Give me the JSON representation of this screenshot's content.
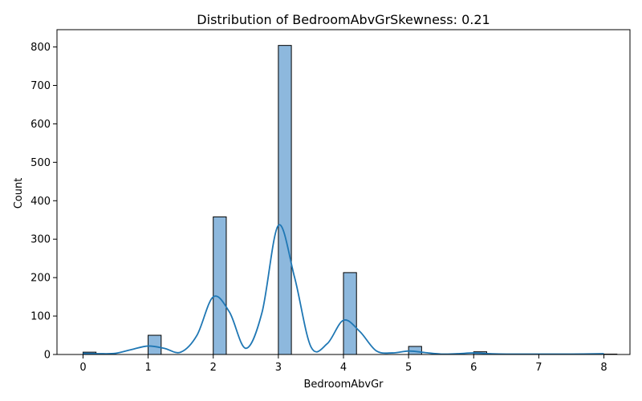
{
  "chart_data": {
    "type": "bar",
    "title": "Distribution of BedroomAbvGrSkewness: 0.21",
    "xlabel": "BedroomAbvGr",
    "ylabel": "Count",
    "xlim": [
      -0.4,
      8.4
    ],
    "ylim": [
      0,
      845
    ],
    "x_ticks": [
      0,
      1,
      2,
      3,
      4,
      5,
      6,
      7,
      8
    ],
    "y_ticks": [
      0,
      100,
      200,
      300,
      400,
      500,
      600,
      700,
      800
    ],
    "bin_width": 0.2,
    "bins": [
      {
        "x": 0,
        "count": 6
      },
      {
        "x": 1,
        "count": 50
      },
      {
        "x": 2,
        "count": 358
      },
      {
        "x": 3,
        "count": 804
      },
      {
        "x": 4,
        "count": 213
      },
      {
        "x": 5,
        "count": 21
      },
      {
        "x": 6,
        "count": 7
      },
      {
        "x": 8,
        "count": 1
      }
    ],
    "kde": {
      "x": [
        0,
        0.25,
        0.5,
        0.75,
        1.0,
        1.25,
        1.5,
        1.75,
        2.0,
        2.25,
        2.5,
        2.75,
        3.0,
        3.25,
        3.5,
        3.75,
        4.0,
        4.25,
        4.5,
        4.75,
        5.0,
        5.25,
        5.5,
        5.75,
        6.0,
        6.25,
        6.5,
        7.0,
        7.5,
        8.0
      ],
      "y": [
        3,
        2,
        3,
        13,
        22,
        16,
        6,
        50,
        150,
        110,
        16,
        110,
        336,
        200,
        20,
        28,
        89,
        60,
        10,
        4,
        9,
        5,
        1,
        2,
        4,
        2,
        1,
        1,
        1,
        2
      ]
    },
    "bar_color": "#8db8dd",
    "bar_edge_color": "#000000",
    "line_color": "#1f77b4",
    "grid": false
  }
}
